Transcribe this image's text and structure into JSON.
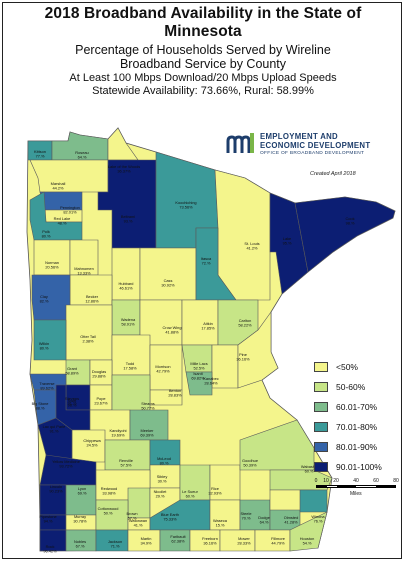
{
  "title": "2018 Broadband Availability in the State of Minnesota",
  "subtitle_line1": "Percentage of Households Served by Wireline",
  "subtitle_line2": "Broadband Service by County",
  "speed_line": "At Least 100 Mbps Download/20 Mbps Upload Speeds",
  "availability_line": "Statewide Availability: 73.66%, Rural: 58.99%",
  "created": "Created April 2018",
  "logo": {
    "line1": "EMPLOYMENT AND",
    "line2": "ECONOMIC DEVELOPMENT",
    "line3": "OFFICE OF BROADBAND DEVELOPMENT",
    "mark_text": "m"
  },
  "legend": [
    {
      "label": "<50%",
      "color": "#f4f58c"
    },
    {
      "label": "50-60%",
      "color": "#c7e587"
    },
    {
      "label": "60.01-70%",
      "color": "#7ebc8c"
    },
    {
      "label": "70.01-80%",
      "color": "#3b9a99"
    },
    {
      "label": "80.01-90%",
      "color": "#3463a8"
    },
    {
      "label": "90.01-100%",
      "color": "#0c1e73"
    }
  ],
  "scale": {
    "ticks": [
      "0",
      "10",
      "20",
      "40",
      "60",
      "80"
    ],
    "unit": "Miles"
  },
  "counties": [
    {
      "name": "Kittson",
      "value": "77.%"
    },
    {
      "name": "Roseau",
      "value": "64.%"
    },
    {
      "name": "Lake of the Woods",
      "value": "36.37%"
    },
    {
      "name": "Marshall",
      "value": "44.2%"
    },
    {
      "name": "Pennington",
      "value": "82.01%"
    },
    {
      "name": "Red Lake",
      "value": "48.%"
    },
    {
      "name": "Polk",
      "value": "80.%"
    },
    {
      "name": "Beltrami",
      "value": "93.%"
    },
    {
      "name": "Koochiching",
      "value": "73.56%"
    },
    {
      "name": "St. Louis",
      "value": "41.2%"
    },
    {
      "name": "Lake",
      "value": "95.%"
    },
    {
      "name": "Cook",
      "value": "98.%"
    },
    {
      "name": "Norman",
      "value": "20.56%"
    },
    {
      "name": "Mahnomen",
      "value": "13.33%"
    },
    {
      "name": "Hubbard",
      "value": "46.61%"
    },
    {
      "name": "Cass",
      "value": "30.92%"
    },
    {
      "name": "Itasca",
      "value": "72.%"
    },
    {
      "name": "Becker",
      "value": "12.86%"
    },
    {
      "name": "Clay",
      "value": "82.%"
    },
    {
      "name": "Wadena",
      "value": "58.91%"
    },
    {
      "name": "Crow Wing",
      "value": "41.88%"
    },
    {
      "name": "Aitkin",
      "value": "17.85%"
    },
    {
      "name": "Carlton",
      "value": "58.22%"
    },
    {
      "name": "Otter Tail",
      "value": "2.38%"
    },
    {
      "name": "Wilkin",
      "value": "80.%"
    },
    {
      "name": "Todd",
      "value": "17.58%"
    },
    {
      "name": "Morrison",
      "value": "42.79%"
    },
    {
      "name": "Mille Lacs",
      "value": "52.5%"
    },
    {
      "name": "Kanabec",
      "value": "28.64%"
    },
    {
      "name": "Pine",
      "value": "36.16%"
    },
    {
      "name": "Grant",
      "value": "58.89%"
    },
    {
      "name": "Douglas",
      "value": "29.88%"
    },
    {
      "name": "Traverse",
      "value": "89.62%"
    },
    {
      "name": "Stevens",
      "value": "91.%"
    },
    {
      "name": "Pope",
      "value": "23.67%"
    },
    {
      "name": "Benton",
      "value": "28.83%"
    },
    {
      "name": "Isanti",
      "value": "69.82%"
    },
    {
      "name": "Stearns",
      "value": "50.77%"
    },
    {
      "name": "Big Stone",
      "value": "88.%"
    },
    {
      "name": "Swift",
      "value": "98.%"
    },
    {
      "name": "Kandiyohi",
      "value": "19.69%"
    },
    {
      "name": "Meeker",
      "value": "69.39%"
    },
    {
      "name": "Chippewa",
      "value": "24.5%"
    },
    {
      "name": "Lac qui Parle",
      "value": "91.%"
    },
    {
      "name": "Renville",
      "value": "57.5%"
    },
    {
      "name": "McLeod",
      "value": "80.%"
    },
    {
      "name": "Yellow Medicine",
      "value": "93.72%"
    },
    {
      "name": "Sibley",
      "value": "30.%"
    },
    {
      "name": "Lincoln",
      "value": "90.23%"
    },
    {
      "name": "Lyon",
      "value": "69.%"
    },
    {
      "name": "Redwood",
      "value": "33.98%"
    },
    {
      "name": "Brown",
      "value": "57.%"
    },
    {
      "name": "Nicollet",
      "value": "29.%"
    },
    {
      "name": "Le Sueur",
      "value": "60.%"
    },
    {
      "name": "Rice",
      "value": "32.93%"
    },
    {
      "name": "Goodhue",
      "value": "50.39%"
    },
    {
      "name": "Wabasha",
      "value": "60.%"
    },
    {
      "name": "Pipestone",
      "value": "94.%"
    },
    {
      "name": "Murray",
      "value": "30.78%"
    },
    {
      "name": "Cottonwood",
      "value": "50.%"
    },
    {
      "name": "Watonwan",
      "value": "41.%"
    },
    {
      "name": "Blue Earth",
      "value": "75.33%"
    },
    {
      "name": "Waseca",
      "value": "15.%"
    },
    {
      "name": "Steele",
      "value": "70.%"
    },
    {
      "name": "Dodge",
      "value": "64.%"
    },
    {
      "name": "Olmsted",
      "value": "41.28%"
    },
    {
      "name": "Winona",
      "value": "76.%"
    },
    {
      "name": "Rock",
      "value": "96.42%"
    },
    {
      "name": "Nobles",
      "value": "67.%"
    },
    {
      "name": "Jackson",
      "value": "71.%"
    },
    {
      "name": "Martin",
      "value": "34.9%"
    },
    {
      "name": "Faribault",
      "value": "62.38%"
    },
    {
      "name": "Freeborn",
      "value": "36.16%"
    },
    {
      "name": "Mower",
      "value": "28.33%"
    },
    {
      "name": "Fillmore",
      "value": "44.79%"
    },
    {
      "name": "Houston",
      "value": "54.%"
    }
  ]
}
